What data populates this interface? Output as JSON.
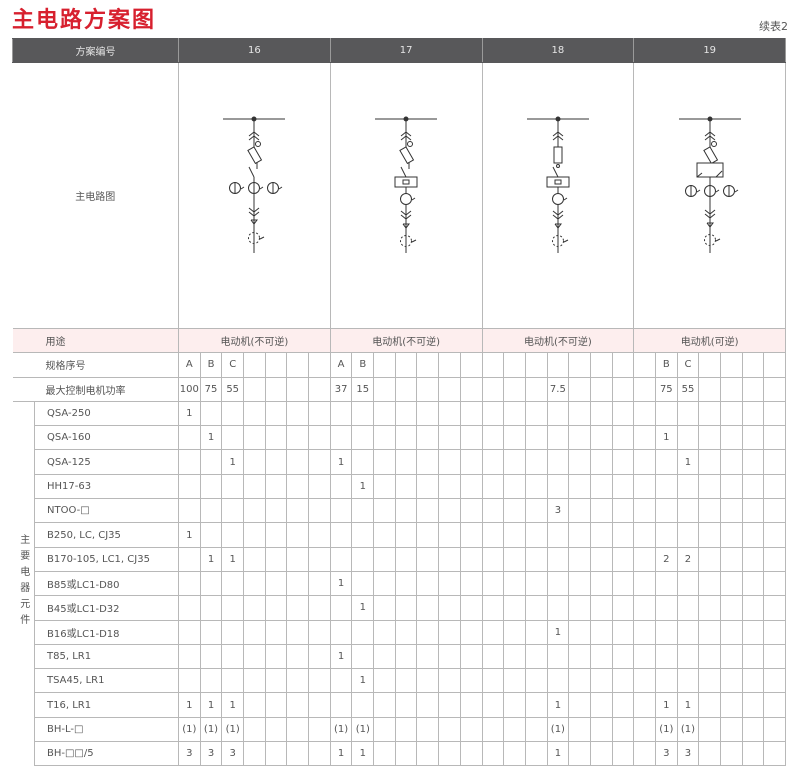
{
  "title": "主电路方案图",
  "sheet_label": "续表2",
  "header": {
    "label": "方案编号",
    "schemes": [
      "16",
      "17",
      "18",
      "19"
    ]
  },
  "diagram_row": {
    "label": "主电路图",
    "diagrams": [
      "scheme-16-circuit",
      "scheme-17-circuit",
      "scheme-18-circuit",
      "scheme-19-circuit"
    ]
  },
  "usage_row": {
    "label": "用途",
    "values": [
      "电动机(不可逆)",
      "电动机(不可逆)",
      "电动机(不可逆)",
      "电动机(可逆)"
    ]
  },
  "spec_rows": [
    {
      "label": "规格序号",
      "cells": [
        "A",
        "B",
        "C",
        "",
        "",
        "",
        "",
        "A",
        "B",
        "",
        "",
        "",
        "",
        "",
        "",
        "",
        "",
        "",
        "",
        "",
        "",
        "",
        "B",
        "C",
        "",
        "",
        "",
        ""
      ]
    },
    {
      "label": "最大控制电机功率",
      "cells": [
        "100",
        "75",
        "55",
        "",
        "",
        "",
        "",
        "37",
        "15",
        "",
        "",
        "",
        "",
        "",
        "",
        "",
        "",
        "7.5",
        "",
        "",
        "",
        "",
        "75",
        "55",
        "",
        "",
        "",
        ""
      ]
    }
  ],
  "components": {
    "group_label": "主要电器元件",
    "rows": [
      {
        "label": "QSA-250",
        "cells": [
          "1",
          "",
          "",
          "",
          "",
          "",
          "",
          "",
          "",
          "",
          "",
          "",
          "",
          "",
          "",
          "",
          "",
          "",
          "",
          "",
          "",
          "",
          "",
          "",
          "",
          "",
          "",
          ""
        ]
      },
      {
        "label": "QSA-160",
        "cells": [
          "",
          "1",
          "",
          "",
          "",
          "",
          "",
          "",
          "",
          "",
          "",
          "",
          "",
          "",
          "",
          "",
          "",
          "",
          "",
          "",
          "",
          "",
          "1",
          "",
          "",
          "",
          "",
          ""
        ]
      },
      {
        "label": "QSA-125",
        "cells": [
          "",
          "",
          "1",
          "",
          "",
          "",
          "",
          "1",
          "",
          "",
          "",
          "",
          "",
          "",
          "",
          "",
          "",
          "",
          "",
          "",
          "",
          "",
          "",
          "1",
          "",
          "",
          "",
          ""
        ]
      },
      {
        "label": "HH17-63",
        "cells": [
          "",
          "",
          "",
          "",
          "",
          "",
          "",
          "",
          "1",
          "",
          "",
          "",
          "",
          "",
          "",
          "",
          "",
          "",
          "",
          "",
          "",
          "",
          "",
          "",
          "",
          "",
          "",
          ""
        ]
      },
      {
        "label": "NTOO-□",
        "cells": [
          "",
          "",
          "",
          "",
          "",
          "",
          "",
          "",
          "",
          "",
          "",
          "",
          "",
          "",
          "",
          "",
          "",
          "3",
          "",
          "",
          "",
          "",
          "",
          "",
          "",
          "",
          "",
          ""
        ]
      },
      {
        "label": "B250, LC, CJ35",
        "cells": [
          "1",
          "",
          "",
          "",
          "",
          "",
          "",
          "",
          "",
          "",
          "",
          "",
          "",
          "",
          "",
          "",
          "",
          "",
          "",
          "",
          "",
          "",
          "",
          "",
          "",
          "",
          "",
          ""
        ]
      },
      {
        "label": "B170-105, LC1, CJ35",
        "cells": [
          "",
          "1",
          "1",
          "",
          "",
          "",
          "",
          "",
          "",
          "",
          "",
          "",
          "",
          "",
          "",
          "",
          "",
          "",
          "",
          "",
          "",
          "",
          "2",
          "2",
          "",
          "",
          "",
          ""
        ]
      },
      {
        "label": "B85或LC1-D80",
        "cells": [
          "",
          "",
          "",
          "",
          "",
          "",
          "",
          "1",
          "",
          "",
          "",
          "",
          "",
          "",
          "",
          "",
          "",
          "",
          "",
          "",
          "",
          "",
          "",
          "",
          "",
          "",
          "",
          ""
        ]
      },
      {
        "label": "B45或LC1-D32",
        "cells": [
          "",
          "",
          "",
          "",
          "",
          "",
          "",
          "",
          "1",
          "",
          "",
          "",
          "",
          "",
          "",
          "",
          "",
          "",
          "",
          "",
          "",
          "",
          "",
          "",
          "",
          "",
          "",
          ""
        ]
      },
      {
        "label": "B16或LC1-D18",
        "cells": [
          "",
          "",
          "",
          "",
          "",
          "",
          "",
          "",
          "",
          "",
          "",
          "",
          "",
          "",
          "",
          "",
          "",
          "1",
          "",
          "",
          "",
          "",
          "",
          "",
          "",
          "",
          "",
          ""
        ]
      },
      {
        "label": "T85, LR1",
        "cells": [
          "",
          "",
          "",
          "",
          "",
          "",
          "",
          "1",
          "",
          "",
          "",
          "",
          "",
          "",
          "",
          "",
          "",
          "",
          "",
          "",
          "",
          "",
          "",
          "",
          "",
          "",
          "",
          ""
        ]
      },
      {
        "label": "TSA45, LR1",
        "cells": [
          "",
          "",
          "",
          "",
          "",
          "",
          "",
          "",
          "1",
          "",
          "",
          "",
          "",
          "",
          "",
          "",
          "",
          "",
          "",
          "",
          "",
          "",
          "",
          "",
          "",
          "",
          "",
          ""
        ]
      },
      {
        "label": "T16, LR1",
        "cells": [
          "1",
          "1",
          "1",
          "",
          "",
          "",
          "",
          "",
          "",
          "",
          "",
          "",
          "",
          "",
          "",
          "",
          "",
          "1",
          "",
          "",
          "",
          "",
          "1",
          "1",
          "",
          "",
          "",
          ""
        ]
      },
      {
        "label": "BH-L-□",
        "cells": [
          "(1)",
          "(1)",
          "(1)",
          "",
          "",
          "",
          "",
          "(1)",
          "(1)",
          "",
          "",
          "",
          "",
          "",
          "",
          "",
          "",
          "(1)",
          "",
          "",
          "",
          "",
          "(1)",
          "(1)",
          "",
          "",
          "",
          ""
        ]
      },
      {
        "label": "BH-□□/5",
        "cells": [
          "3",
          "3",
          "3",
          "",
          "",
          "",
          "",
          "1",
          "1",
          "",
          "",
          "",
          "",
          "",
          "",
          "",
          "",
          "1",
          "",
          "",
          "",
          "",
          "3",
          "3",
          "",
          "",
          "",
          ""
        ]
      }
    ]
  },
  "colors": {
    "title": "#d7202e",
    "header_bg": "#58585a",
    "row_pink": "#fdeeee",
    "grid": "#b8b8b8"
  }
}
